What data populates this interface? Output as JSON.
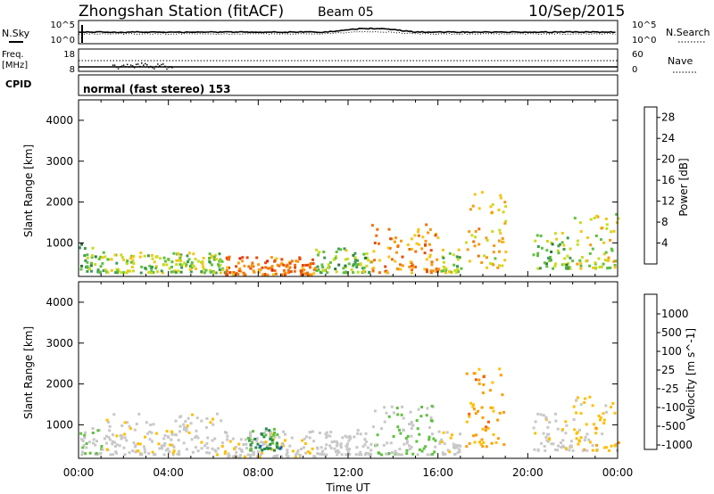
{
  "header": {
    "station": "Zhongshan Station (fitACF)",
    "beam": "Beam 05",
    "date": "10/Sep/2015"
  },
  "top_panels": {
    "nsky_label": "N.Sky",
    "nsky_ticks": [
      "10^5",
      "10^0"
    ],
    "nsearch_label": "N.Search",
    "freq_label_1": "Freq.",
    "freq_label_2": "[MHz]",
    "freq_ticks": [
      "18",
      "8"
    ],
    "nave_label": "Nave",
    "nave_ticks": [
      "60",
      "0"
    ],
    "cpid_label": "CPID",
    "cpid_text": "normal (fast stereo) 153"
  },
  "x_axis": {
    "title": "Time UT",
    "ticks": [
      "00:00",
      "04:00",
      "08:00",
      "12:00",
      "16:00",
      "20:00",
      "00:00"
    ]
  },
  "colors": {
    "power_scale": [
      "#0000ff",
      "#1e4fb8",
      "#2a7a3a",
      "#3f9a55",
      "#5fc040",
      "#c8dc1e",
      "#f5c518",
      "#f59a10",
      "#f07010",
      "#e64a0a",
      "#e01e0a"
    ],
    "velocity_scale": [
      "#ff0000",
      "#ff5a00",
      "#ff9b00",
      "#ffbf00",
      "#c8c8c8",
      "#c8c8c8",
      "#5fc040",
      "#2a8a4a",
      "#1e5fb0",
      "#1e3cc8"
    ]
  },
  "chart_data": [
    {
      "type": "heatmap",
      "name": "power_panel",
      "ylabel": "Slant Range [km]",
      "yticks": [
        1000,
        2000,
        3000,
        4000
      ],
      "ylim": [
        180,
        4500
      ],
      "xlim_hours": [
        0,
        24
      ],
      "colorbar": {
        "label": "Power [dB]",
        "ticks": [
          4,
          8,
          12,
          16,
          20,
          24,
          28
        ],
        "range": [
          0,
          30
        ]
      },
      "echo_regions": [
        {
          "t0": 0.0,
          "t1": 1.0,
          "r0": 300,
          "r1": 1000,
          "level": 10
        },
        {
          "t0": 1.0,
          "t1": 6.5,
          "r0": 300,
          "r1": 800,
          "level": 14
        },
        {
          "t0": 6.5,
          "t1": 10.5,
          "r0": 250,
          "r1": 700,
          "level": 24
        },
        {
          "t0": 10.5,
          "t1": 13.0,
          "r0": 300,
          "r1": 900,
          "level": 12
        },
        {
          "t0": 13.0,
          "t1": 16.0,
          "r0": 300,
          "r1": 1500,
          "level": 22
        },
        {
          "t0": 16.0,
          "t1": 17.0,
          "r0": 300,
          "r1": 900,
          "level": 14
        },
        {
          "t0": 17.2,
          "t1": 19.0,
          "r0": 400,
          "r1": 2400,
          "level": 18
        },
        {
          "t0": 20.2,
          "t1": 22.0,
          "r0": 400,
          "r1": 1300,
          "level": 12
        },
        {
          "t0": 22.0,
          "t1": 24.0,
          "r0": 400,
          "r1": 1800,
          "level": 16
        }
      ]
    },
    {
      "type": "heatmap",
      "name": "velocity_panel",
      "ylabel": "Slant Range [km]",
      "yticks": [
        1000,
        2000,
        3000,
        4000
      ],
      "ylim": [
        180,
        4500
      ],
      "xlim_hours": [
        0,
        24
      ],
      "colorbar": {
        "label": "Velocity [m s^-1]",
        "ticks": [
          1000,
          500,
          100,
          25,
          -25,
          -100,
          -500,
          -1000
        ],
        "range": [
          -1000,
          1000
        ]
      },
      "echo_regions": [
        {
          "t0": 0.0,
          "t1": 1.0,
          "r0": 300,
          "r1": 1000,
          "level": 100
        },
        {
          "t0": 1.0,
          "t1": 6.5,
          "r0": 300,
          "r1": 1300,
          "level": -100
        },
        {
          "t0": 6.5,
          "t1": 10.5,
          "r0": 250,
          "r1": 900,
          "level": -100
        },
        {
          "t0": 7.5,
          "t1": 9.0,
          "r0": 400,
          "r1": 1000,
          "level": 500
        },
        {
          "t0": 10.5,
          "t1": 13.0,
          "r0": 300,
          "r1": 900,
          "level": 25
        },
        {
          "t0": 13.0,
          "t1": 16.0,
          "r0": 300,
          "r1": 1500,
          "level": 200
        },
        {
          "t0": 16.0,
          "t1": 17.0,
          "r0": 300,
          "r1": 900,
          "level": -100
        },
        {
          "t0": 17.2,
          "t1": 19.0,
          "r0": 500,
          "r1": 2400,
          "level": -500
        },
        {
          "t0": 20.2,
          "t1": 22.0,
          "r0": 400,
          "r1": 1300,
          "level": -100
        },
        {
          "t0": 22.0,
          "t1": 24.0,
          "r0": 400,
          "r1": 1800,
          "level": -300
        }
      ]
    }
  ]
}
